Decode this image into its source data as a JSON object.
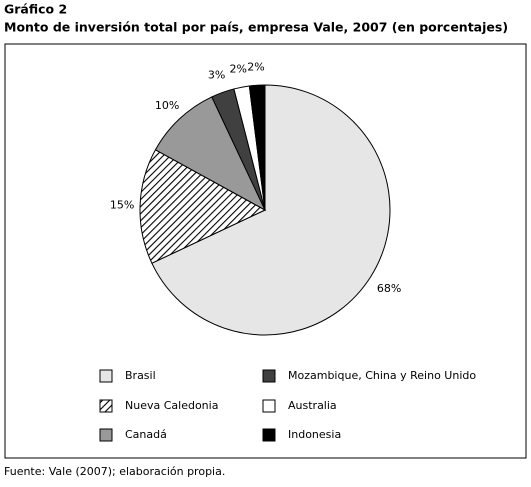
{
  "chart_data": {
    "type": "pie",
    "title": "Gráfico 2",
    "subtitle": "Monto de inversión total por país, empresa Vale, 2007 (en porcentajes)",
    "categories": [
      "Brasil",
      "Nueva Caledonia",
      "Canadá",
      "Mozambique, China y Reino Unido",
      "Australia",
      "Indonesia"
    ],
    "values": [
      68,
      15,
      10,
      3,
      2,
      2
    ],
    "value_labels": [
      "68%",
      "15%",
      "10%",
      "3%",
      "2%",
      "2%"
    ],
    "colors": [
      "#e6e6e6",
      "hatch",
      "#999999",
      "#404040",
      "#ffffff",
      "#000000"
    ],
    "source": "Fuente: Vale (2007); elaboración propia."
  }
}
